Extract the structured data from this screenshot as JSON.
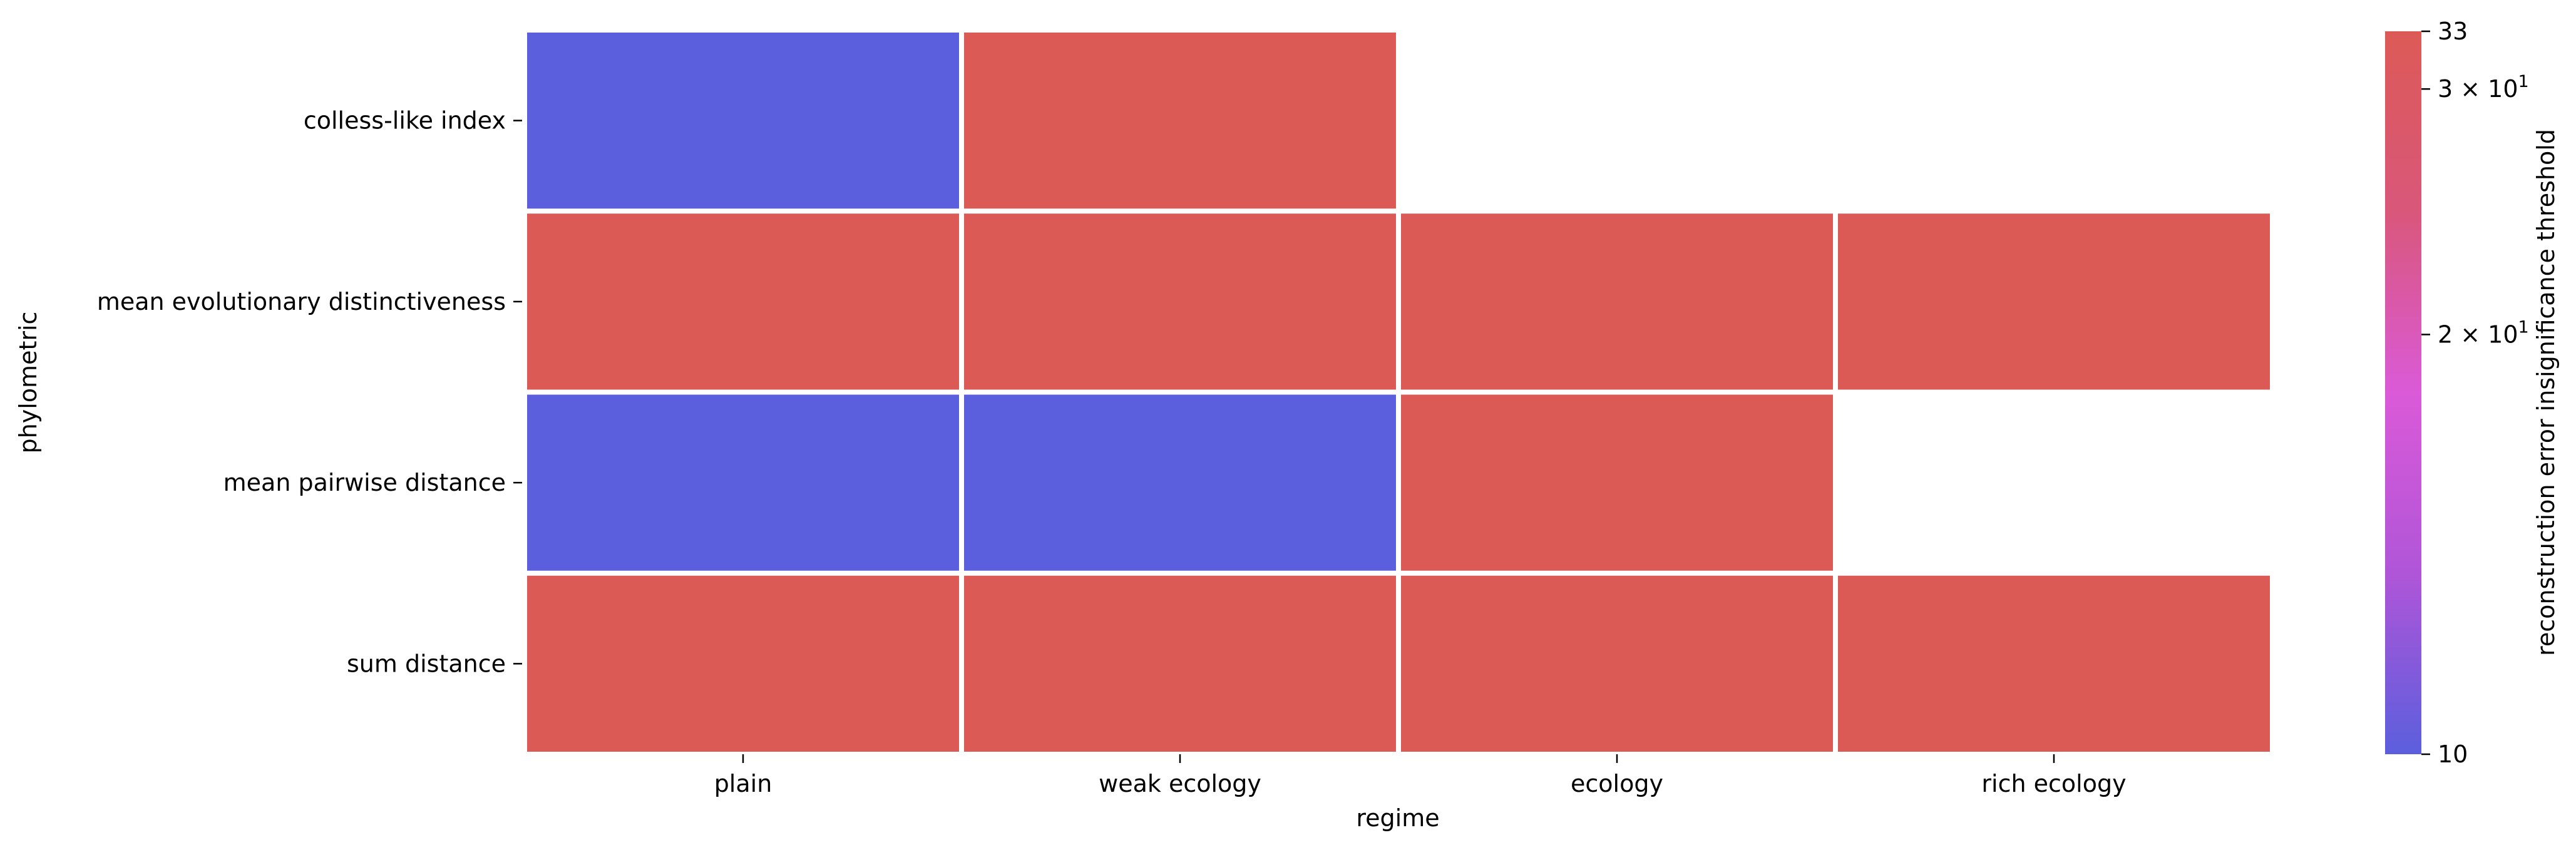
{
  "chart_data": {
    "type": "heatmap",
    "title": "",
    "xlabel": "regime",
    "ylabel": "phylometric",
    "x_categories": [
      "plain",
      "weak ecology",
      "ecology",
      "rich ecology"
    ],
    "y_categories": [
      "colless-like index",
      "mean evolutionary distinctiveness",
      "mean pairwise distance",
      "sum distance"
    ],
    "values": [
      [
        10,
        33,
        null,
        null
      ],
      [
        33,
        33,
        33,
        33
      ],
      [
        10,
        10,
        33,
        null
      ],
      [
        33,
        33,
        33,
        33
      ]
    ],
    "colorbar": {
      "label": "reconstruction error insignificance threshold",
      "scale": "log",
      "range": [
        10,
        33
      ],
      "ticks": [
        {
          "value": 33,
          "label": "33"
        },
        {
          "value": 30,
          "label": "3 × 10",
          "exponent": "1"
        },
        {
          "value": 20,
          "label": "2 × 10",
          "exponent": "1"
        },
        {
          "value": 10,
          "label": "10"
        }
      ],
      "colors": [
        "#5b5fdd",
        "#b055d8",
        "#da5ad8",
        "#d9577a",
        "#dc5a56"
      ]
    },
    "grid": false,
    "legend": "colorbar-right"
  }
}
